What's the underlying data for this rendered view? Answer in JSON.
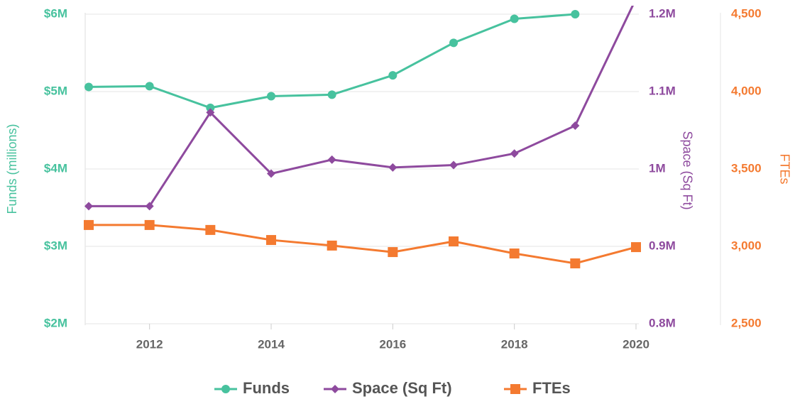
{
  "chart_data": {
    "type": "line",
    "x": [
      2011,
      2012,
      2013,
      2014,
      2015,
      2016,
      2017,
      2018,
      2019,
      2020
    ],
    "xlim": [
      2011,
      2020
    ],
    "xticks": [
      2012,
      2014,
      2016,
      2018,
      2020
    ],
    "ylabel": "Funds (millions)",
    "y2label": "Space (Sq Ft)",
    "y3label": "FTEs",
    "ylim": [
      2,
      6
    ],
    "yticks": [
      {
        "value": 2,
        "label": "$2M"
      },
      {
        "value": 3,
        "label": "$3M"
      },
      {
        "value": 4,
        "label": "$4M"
      },
      {
        "value": 5,
        "label": "$5M"
      },
      {
        "value": 6,
        "label": "$6M"
      }
    ],
    "y2lim": [
      0.8,
      1.2
    ],
    "y2ticks": [
      {
        "value": 0.8,
        "label": "0.8M"
      },
      {
        "value": 0.9,
        "label": "0.9M"
      },
      {
        "value": 1,
        "label": "1M"
      },
      {
        "value": 1.1,
        "label": "1.1M"
      },
      {
        "value": 1.2,
        "label": "1.2M"
      }
    ],
    "y3lim": [
      2500,
      4500
    ],
    "y3ticks": [
      {
        "value": 2500,
        "label": "2,500"
      },
      {
        "value": 3000,
        "label": "3,000"
      },
      {
        "value": 3500,
        "label": "3,500"
      },
      {
        "value": 4000,
        "label": "4,000"
      },
      {
        "value": 4500,
        "label": "4,500"
      }
    ],
    "grid": true,
    "legend": "bottom",
    "series": [
      {
        "name": "Funds",
        "color": "#47c29e",
        "marker": "circle",
        "axis": "y",
        "values": [
          5.06,
          5.07,
          4.79,
          4.94,
          4.96,
          5.21,
          5.63,
          5.94,
          6.0,
          null
        ]
      },
      {
        "name": "Space (Sq Ft)",
        "color": "#8e4a9e",
        "marker": "diamond",
        "axis": "y2",
        "values": [
          0.952,
          0.952,
          1.073,
          0.994,
          1.012,
          1.002,
          1.005,
          1.02,
          1.056,
          1.22
        ]
      },
      {
        "name": "FTEs",
        "color": "#f47a30",
        "marker": "square",
        "axis": "y3",
        "values": [
          3138,
          3138,
          3106,
          3041,
          3005,
          2963,
          3032,
          2954,
          2890,
          2995
        ]
      }
    ]
  }
}
